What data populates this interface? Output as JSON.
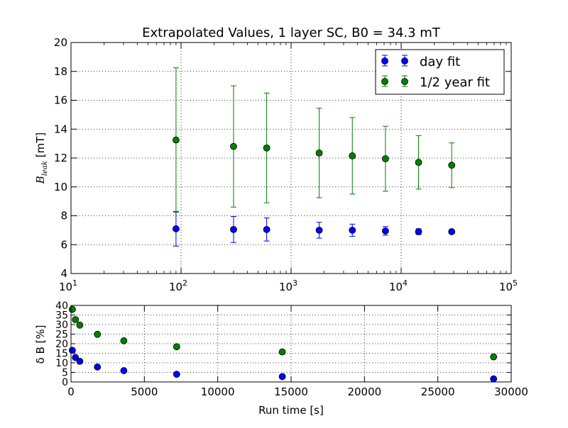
{
  "chart_data": [
    {
      "type": "scatter",
      "title": "Extrapolated Values, 1 layer SC, B0 = 34.3 mT",
      "xscale": "log",
      "xlim": [
        10,
        100000
      ],
      "ylim": [
        4,
        20
      ],
      "xlabel": "",
      "ylabel_main": "B",
      "ylabel_sub": "leak",
      "ylabel_unit": " [mT]",
      "grid": true,
      "legend_position": "top-right",
      "xticks": [
        10,
        100,
        1000,
        10000,
        100000
      ],
      "xtick_labels": [
        {
          "base": "10",
          "exp": "1"
        },
        {
          "base": "10",
          "exp": "2"
        },
        {
          "base": "10",
          "exp": "3"
        },
        {
          "base": "10",
          "exp": "4"
        },
        {
          "base": "10",
          "exp": "5"
        }
      ],
      "yticks": [
        4,
        6,
        8,
        10,
        12,
        14,
        16,
        18,
        20
      ],
      "ytick_labels": [
        "4",
        "6",
        "8",
        "10",
        "12",
        "14",
        "16",
        "18",
        "20"
      ],
      "series": [
        {
          "name": "day fit",
          "color": "#0000ff",
          "x": [
            90,
            300,
            600,
            1800,
            3600,
            7200,
            14400,
            28800
          ],
          "y": [
            7.1,
            7.05,
            7.05,
            7.0,
            7.0,
            6.95,
            6.9,
            6.9
          ],
          "yerr": [
            1.2,
            0.9,
            0.8,
            0.55,
            0.42,
            0.3,
            0.2,
            0.12
          ]
        },
        {
          "name": "1/2 year fit",
          "color": "#007f00",
          "x": [
            90,
            300,
            600,
            1800,
            3600,
            7200,
            14400,
            28800
          ],
          "y": [
            13.25,
            12.8,
            12.7,
            12.35,
            12.15,
            11.95,
            11.7,
            11.5
          ],
          "yerr": [
            5.0,
            4.2,
            3.8,
            3.1,
            2.65,
            2.25,
            1.85,
            1.55
          ]
        }
      ]
    },
    {
      "type": "scatter",
      "title": "",
      "xlim": [
        0,
        30000
      ],
      "ylim": [
        0,
        40
      ],
      "xlabel": "Run time [s]",
      "ylabel": "δ B [%]",
      "grid": true,
      "xticks": [
        0,
        5000,
        10000,
        15000,
        20000,
        25000,
        30000
      ],
      "xtick_labels": [
        "0",
        "5000",
        "10000",
        "15000",
        "20000",
        "25000",
        "30000"
      ],
      "yticks": [
        0,
        5,
        10,
        15,
        20,
        25,
        30,
        35,
        40
      ],
      "ytick_labels": [
        "0",
        "5",
        "10",
        "15",
        "20",
        "25",
        "30",
        "35",
        "40"
      ],
      "series": [
        {
          "color": "#0000ff",
          "x": [
            90,
            300,
            600,
            1800,
            3600,
            7200,
            14400,
            28800
          ],
          "y": [
            16.5,
            12.8,
            10.8,
            7.8,
            5.9,
            4.0,
            2.8,
            1.6
          ]
        },
        {
          "color": "#007f00",
          "x": [
            90,
            300,
            600,
            1800,
            3600,
            7200,
            14400,
            28800
          ],
          "y": [
            37.9,
            32.6,
            29.7,
            24.9,
            21.5,
            18.4,
            15.7,
            13.1
          ]
        }
      ]
    }
  ]
}
